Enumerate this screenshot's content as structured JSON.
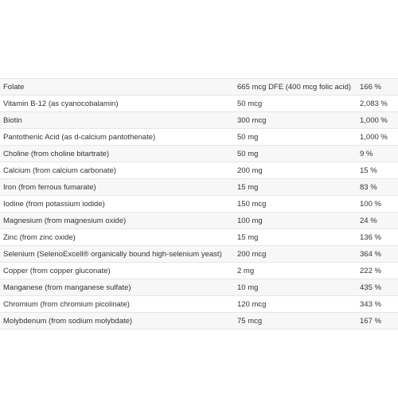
{
  "rows": [
    {
      "name": "Folate",
      "amount": "665 mcg DFE (400 mcg folic acid)",
      "dv": "166 %"
    },
    {
      "name": "Vitamin B-12 (as cyanocobalamin)",
      "amount": "50 mcg",
      "dv": "2,083 %"
    },
    {
      "name": "Biotin",
      "amount": "300 mcg",
      "dv": "1,000 %"
    },
    {
      "name": "Pantothenic Acid (as d-calcium pantothenate)",
      "amount": "50 mg",
      "dv": "1,000 %"
    },
    {
      "name": "Choline (from choline bitartrate)",
      "amount": "50 mg",
      "dv": "9 %"
    },
    {
      "name": "Calcium (from calcium carbonate)",
      "amount": "200 mg",
      "dv": "15 %"
    },
    {
      "name": "Iron (from ferrous fumarate)",
      "amount": "15 mg",
      "dv": "83 %"
    },
    {
      "name": "Iodine (from potassium iodide)",
      "amount": "150 mcg",
      "dv": "100 %"
    },
    {
      "name": "Magnesium (from magnesium oxide)",
      "amount": "100 mg",
      "dv": "24 %"
    },
    {
      "name": "Zinc (from zinc oxide)",
      "amount": "15 mg",
      "dv": "136 %"
    },
    {
      "name": "Selenium (SelenoExcell® organically bound high-selenium yeast)",
      "amount": "200 mcg",
      "dv": "364 %"
    },
    {
      "name": "Copper (from copper gluconate)",
      "amount": "2 mg",
      "dv": "222 %"
    },
    {
      "name": "Manganese (from manganese sulfate)",
      "amount": "10 mg",
      "dv": "435 %"
    },
    {
      "name": "Chromium (from chromium picolinate)",
      "amount": "120 mcg",
      "dv": "343 %"
    },
    {
      "name": "Molybdenum (from sodium molybdate)",
      "amount": "75 mcg",
      "dv": "167 %"
    }
  ]
}
